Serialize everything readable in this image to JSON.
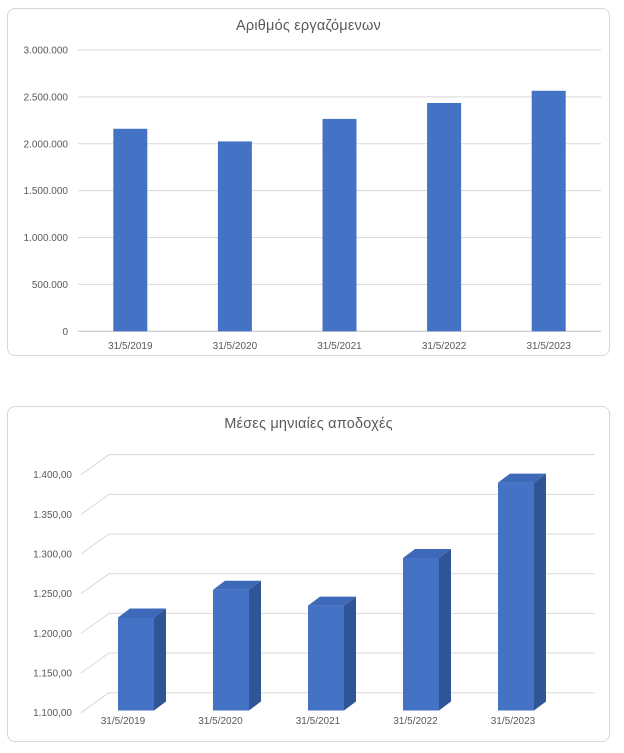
{
  "page": {
    "background": "#ffffff"
  },
  "chart_data": [
    {
      "type": "bar",
      "style_3d": false,
      "title": "Αριθμός εργαζόμενων",
      "categories": [
        "31/5/2019",
        "31/5/2020",
        "31/5/2021",
        "31/5/2022",
        "31/5/2023"
      ],
      "values": [
        2160000,
        2025000,
        2265000,
        2435000,
        2565000
      ],
      "xlabel": "",
      "ylabel": "",
      "ylim": [
        0,
        3000000
      ],
      "ytick_step": 500000,
      "ytick_labels": [
        "0",
        "500.000",
        "1.000.000",
        "1.500.000",
        "2.000.000",
        "2.500.000",
        "3.000.000"
      ],
      "grid": true,
      "legend": false,
      "bar_color": "#4472C4",
      "grid_color": "#D9D9D9",
      "axis_color": "#BFBFBF",
      "text_color": "#595959"
    },
    {
      "type": "bar",
      "style_3d": true,
      "title": "Μέσες μηνιαίες αποδοχές",
      "categories": [
        "31/5/2019",
        "31/5/2020",
        "31/5/2021",
        "31/5/2022",
        "31/5/2023"
      ],
      "values": [
        1220,
        1255,
        1235,
        1295,
        1390
      ],
      "xlabel": "",
      "ylabel": "",
      "ylim": [
        1100,
        1400
      ],
      "ytick_step": 50,
      "ytick_labels": [
        "1.100,00",
        "1.150,00",
        "1.200,00",
        "1.250,00",
        "1.300,00",
        "1.350,00",
        "1.400,00"
      ],
      "grid": true,
      "legend": false,
      "bar_color": "#4472C4",
      "bar_top_color": "#3E68B8",
      "bar_side_color": "#2F5597",
      "grid_color": "#D9D9D9",
      "axis_color": "#BFBFBF",
      "text_color": "#595959"
    }
  ]
}
